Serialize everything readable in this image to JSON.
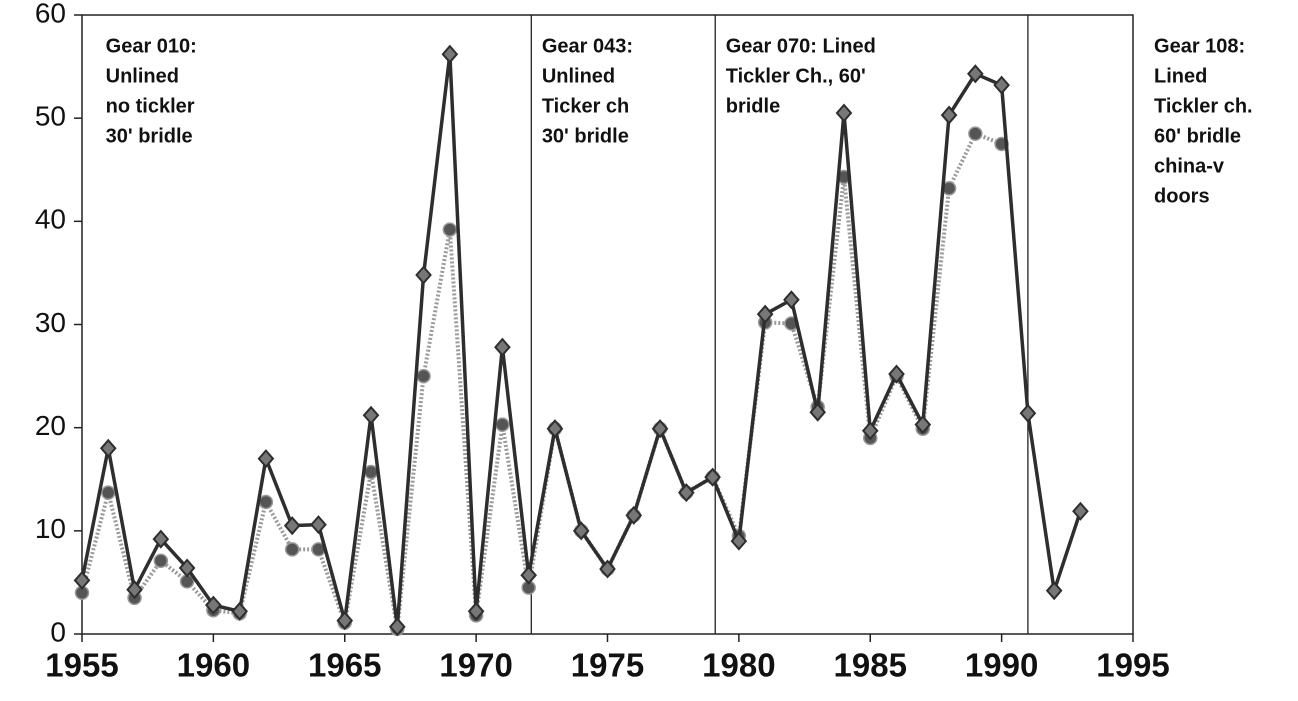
{
  "chart_data": {
    "type": "line",
    "x": [
      1955,
      1956,
      1957,
      1958,
      1959,
      1960,
      1961,
      1962,
      1963,
      1964,
      1965,
      1966,
      1967,
      1968,
      1969,
      1970,
      1971,
      1972,
      1973,
      1974,
      1975,
      1976,
      1977,
      1978,
      1979,
      1980,
      1981,
      1982,
      1983,
      1984,
      1985,
      1986,
      1987,
      1988,
      1989,
      1990,
      1991,
      1992,
      1993
    ],
    "series": [
      {
        "color": "#9a9a9a",
        "dashed": true,
        "marker": "circle",
        "values": [
          4,
          13.7,
          3.5,
          7.1,
          5.1,
          2.3,
          2,
          12.8,
          8.2,
          8.2,
          1.1,
          15.7,
          0.5,
          25,
          39.2,
          1.8,
          20.3,
          4.5,
          19.9,
          10,
          6.3,
          11.5,
          19.9,
          13.7,
          15.2,
          9.5,
          30.2,
          30.1,
          22,
          44.3,
          19,
          25,
          19.9,
          43.2,
          48.5,
          47.5,
          null,
          null,
          null
        ]
      },
      {
        "color": "#2e2e2e",
        "dashed": false,
        "marker": "diamond",
        "values": [
          5.2,
          18,
          4.3,
          9.2,
          6.4,
          2.8,
          2.2,
          17,
          10.5,
          10.6,
          1.3,
          21.2,
          0.7,
          34.8,
          56.2,
          2.2,
          27.8,
          5.7,
          19.9,
          10,
          6.3,
          11.5,
          19.9,
          13.7,
          15.2,
          9,
          31,
          32.4,
          21.5,
          50.5,
          19.7,
          25.2,
          20.3,
          50.3,
          54.3,
          53.2,
          21.4,
          4.2,
          11.9
        ]
      }
    ],
    "xlim": [
      1955,
      1995
    ],
    "xticks": [
      1955,
      1960,
      1965,
      1970,
      1975,
      1980,
      1985,
      1990,
      1995
    ],
    "ylim": [
      0,
      60
    ],
    "yticks": [
      0,
      10,
      20,
      30,
      40,
      50,
      60
    ],
    "dividers": [
      1972.1,
      1979.1,
      1991
    ],
    "annotations": [
      {
        "x": 1955.9,
        "lines": [
          "Gear 010:",
          "Unlined",
          "no tickler",
          "30' bridle"
        ]
      },
      {
        "x": 1972.5,
        "lines": [
          "Gear 043:",
          "Unlined",
          "Ticker ch",
          "30' bridle"
        ]
      },
      {
        "x": 1979.5,
        "lines": [
          "Gear 070:  Lined",
          "Tickler Ch., 60'",
          "bridle"
        ]
      },
      {
        "x": 1995.8,
        "lines": [
          "Gear 108:",
          "Lined",
          "Tickler ch.",
          "60' bridle",
          "china-v",
          "doors"
        ]
      }
    ]
  }
}
